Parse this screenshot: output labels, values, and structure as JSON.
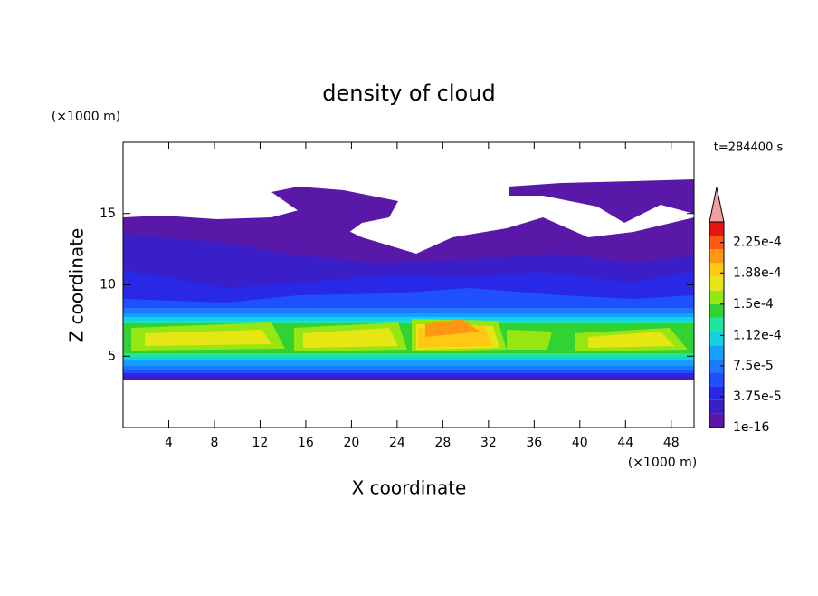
{
  "chart_data": {
    "type": "contour",
    "title": "density of cloud",
    "xlabel": "X coordinate",
    "ylabel": "Z coordinate",
    "x_unit": "(×1000 m)",
    "y_unit": "(×1000 m)",
    "annotation": "t=284400 s",
    "xlim": [
      0,
      50
    ],
    "xticks": [
      4,
      8,
      12,
      16,
      20,
      24,
      28,
      32,
      36,
      40,
      44,
      48
    ],
    "ylim": [
      0,
      20
    ],
    "yticks": [
      5,
      10,
      15
    ],
    "clim": [
      0,
      0.00025
    ],
    "colorbar_colors": [
      "#5a18a8",
      "#3a1ec8",
      "#2828e6",
      "#1e50ff",
      "#1e78ff",
      "#14a0ff",
      "#14d2e6",
      "#1ee6a0",
      "#32d232",
      "#96e614",
      "#e6e614",
      "#ffc814",
      "#ff9614",
      "#ff5a14",
      "#e61414"
    ],
    "colorbar_ticks": [
      {
        "value": 1e-16,
        "label": "1e-16"
      },
      {
        "value": 3.75e-05,
        "label": "3.75e-5"
      },
      {
        "value": 7.5e-05,
        "label": "7.5e-5"
      },
      {
        "value": 0.000112,
        "label": "1.12e-4"
      },
      {
        "value": 0.00015,
        "label": "1.5e-4"
      },
      {
        "value": 0.000188,
        "label": "1.88e-4"
      },
      {
        "value": 0.000225,
        "label": "2.25e-4"
      }
    ]
  }
}
